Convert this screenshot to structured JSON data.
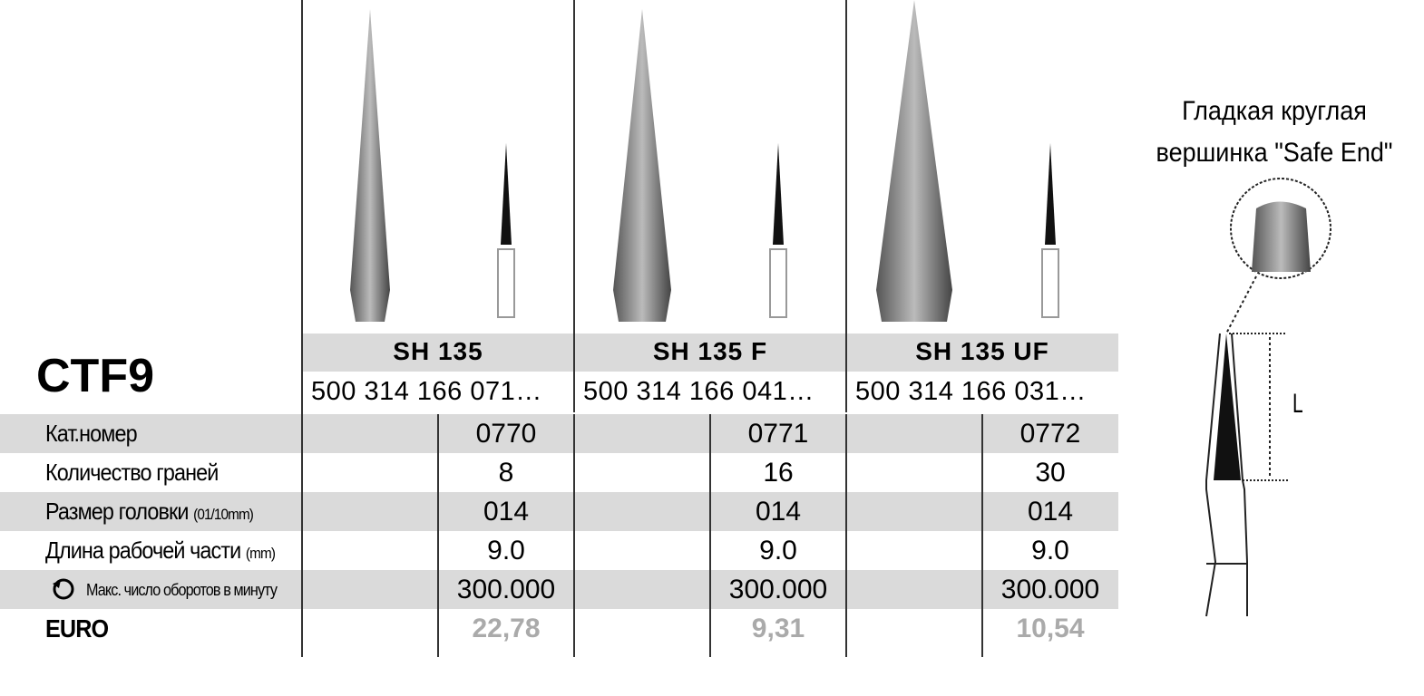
{
  "title": "CTF9",
  "products": [
    {
      "name": "SH 135",
      "code": "500 314 166 071…"
    },
    {
      "name": "SH 135 F",
      "code": "500 314 166 041…"
    },
    {
      "name": "SH 135 UF",
      "code": "500 314 166 031…"
    }
  ],
  "rows": [
    {
      "label": "Кат.номер",
      "values": [
        "0770",
        "0771",
        "0772"
      ]
    },
    {
      "label": "Количество граней",
      "values": [
        "8",
        "16",
        "30"
      ]
    },
    {
      "label": "Размер головки",
      "unit": "(01/10mm)",
      "values": [
        "014",
        "014",
        "014"
      ]
    },
    {
      "label": "Длина рабочей части",
      "unit": "(mm)",
      "values": [
        "9.0",
        "9.0",
        "9.0"
      ]
    },
    {
      "label": "Макс. число оборотов в минуту",
      "values": [
        "300.000",
        "300.000",
        "300.000"
      ]
    },
    {
      "label": "EURO",
      "values": [
        "22,78",
        "9,31",
        "10,54"
      ]
    }
  ],
  "note_lines": [
    "Гладкая круглая",
    "вершинка \"Safe End\""
  ],
  "diagram_label": "L"
}
